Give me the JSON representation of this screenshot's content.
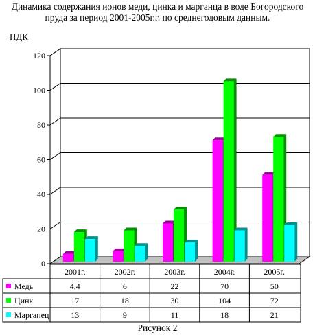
{
  "title_lines": [
    "Динамика содержания ионов меди, цинка и марганца в воде Богородского",
    "пруда за период 2001-2005г.г. по среднегодовым данным."
  ],
  "caption": "Рисунок 2",
  "chart_data": {
    "type": "bar",
    "ylabel": "ПДК",
    "ylim": [
      0,
      120
    ],
    "yticks": [
      0,
      20,
      40,
      60,
      80,
      100,
      120
    ],
    "grid": true,
    "legend_placement": "table-left",
    "categories": [
      "2001г.",
      "2002г.",
      "2003г.",
      "2004г.",
      "2005г."
    ],
    "series": [
      {
        "name": "Медь",
        "color": "#ff00ff",
        "side": "#a000a0",
        "values": [
          4.4,
          6,
          22,
          70,
          50
        ],
        "labels": [
          "4,4",
          "6",
          "22",
          "70",
          "50"
        ]
      },
      {
        "name": "Цинк",
        "color": "#00ff00",
        "side": "#009000",
        "values": [
          17,
          18,
          30,
          104,
          72
        ],
        "labels": [
          "17",
          "18",
          "30",
          "104",
          "72"
        ]
      },
      {
        "name": "Марганец",
        "color": "#00ffff",
        "side": "#009090",
        "values": [
          13,
          9,
          11,
          18,
          21
        ],
        "labels": [
          "13",
          "9",
          "11",
          "18",
          "21"
        ]
      }
    ]
  }
}
